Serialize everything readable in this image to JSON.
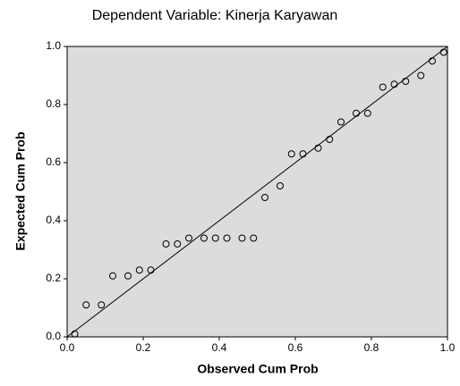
{
  "chart_data": {
    "type": "scatter",
    "title": "Dependent Variable: Kinerja Karyawan",
    "x_label": "Observed Cum Prob",
    "y_label": "Expected Cum Prob",
    "x": [
      0.02,
      0.05,
      0.09,
      0.12,
      0.16,
      0.19,
      0.22,
      0.26,
      0.29,
      0.32,
      0.36,
      0.39,
      0.42,
      0.46,
      0.49,
      0.52,
      0.56,
      0.59,
      0.62,
      0.66,
      0.69,
      0.72,
      0.76,
      0.79,
      0.83,
      0.86,
      0.89,
      0.93,
      0.96,
      0.99
    ],
    "values": [
      0.01,
      0.11,
      0.11,
      0.21,
      0.21,
      0.23,
      0.23,
      0.32,
      0.32,
      0.34,
      0.34,
      0.34,
      0.34,
      0.34,
      0.34,
      0.48,
      0.52,
      0.63,
      0.63,
      0.65,
      0.68,
      0.74,
      0.77,
      0.77,
      0.86,
      0.87,
      0.88,
      0.9,
      0.95,
      0.98
    ],
    "color": "#000000",
    "xlim": [
      0,
      1
    ],
    "ylim": [
      0,
      1
    ],
    "xticks": [
      {
        "value": 0,
        "label": "0.0"
      },
      {
        "value": 0.2,
        "label": "0.2"
      },
      {
        "value": 0.4,
        "label": "0.4"
      },
      {
        "value": 0.6,
        "label": "0.6"
      },
      {
        "value": 0.8,
        "label": "0.8"
      },
      {
        "value": 1,
        "label": "1.0"
      }
    ],
    "yticks": [
      {
        "value": 0,
        "label": "0.0"
      },
      {
        "value": 0.2,
        "label": "0.2"
      },
      {
        "value": 0.4,
        "label": "0.4"
      },
      {
        "value": 0.6,
        "label": "0.6"
      },
      {
        "value": 0.8,
        "label": "0.8"
      },
      {
        "value": 1,
        "label": "1.0"
      }
    ]
  }
}
